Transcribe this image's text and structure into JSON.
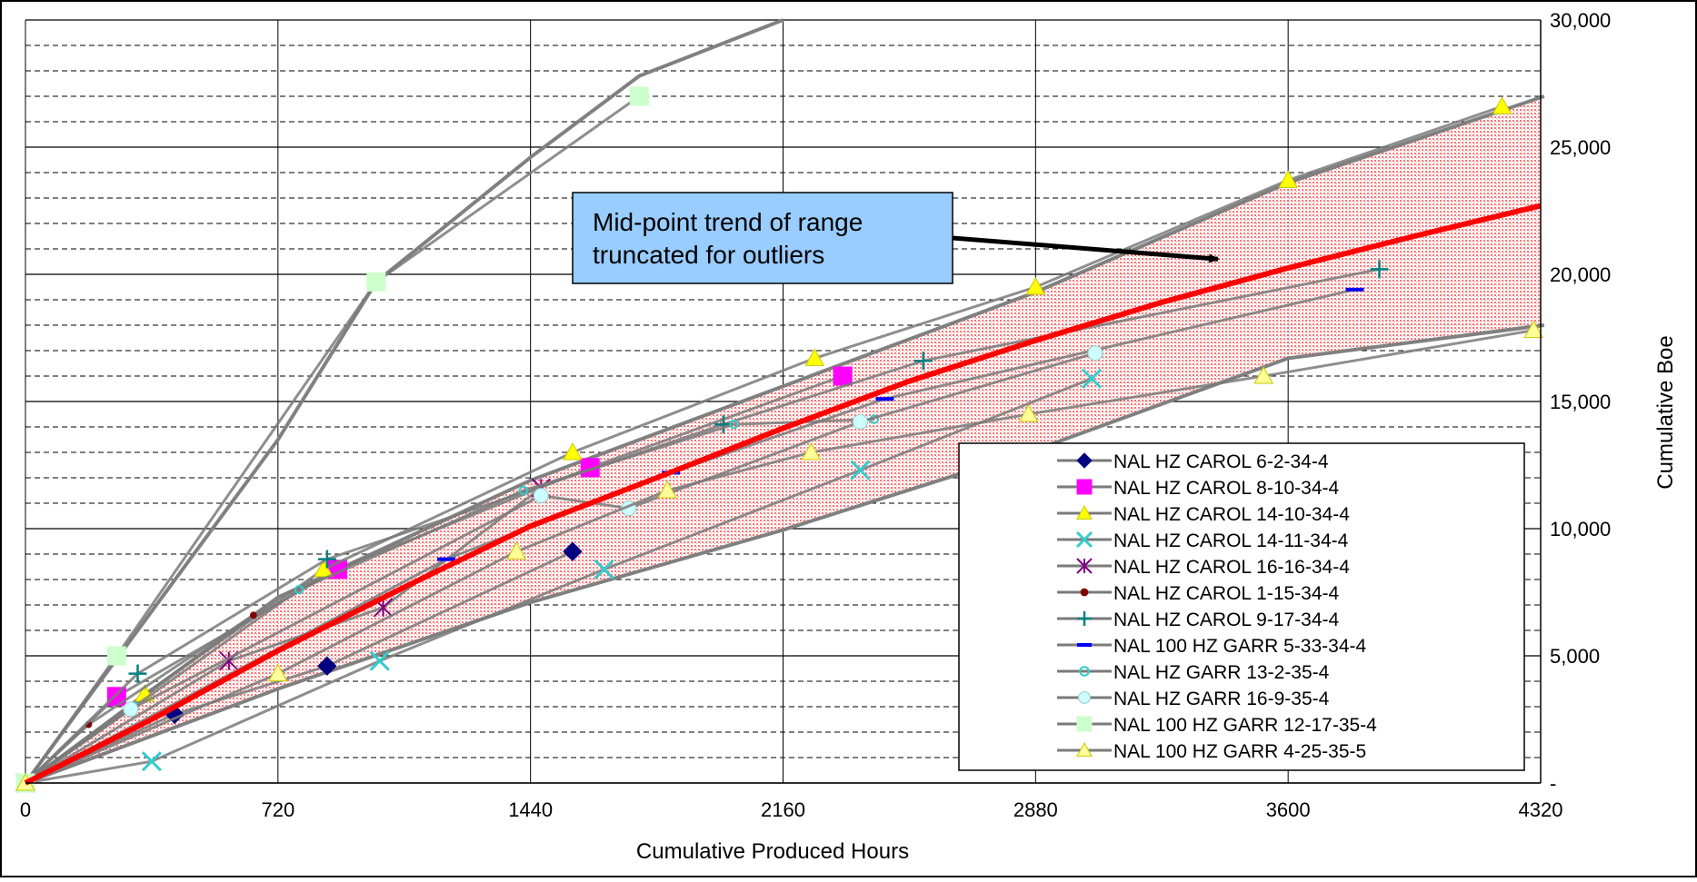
{
  "chart_data": {
    "type": "scatter",
    "xlabel": "Cumulative Produced Hours",
    "ylabel": "Cumulative Boe",
    "xlim": [
      0,
      4320
    ],
    "ylim": [
      0,
      30000
    ],
    "x_ticks": [
      "0",
      "720",
      "1440",
      "2160",
      "2880",
      "3600",
      "4320"
    ],
    "y_ticks": [
      "-",
      "5,000",
      "10,000",
      "15,000",
      "20,000",
      "25,000",
      "30,000"
    ],
    "x_tick_values": [
      0,
      720,
      1440,
      2160,
      2880,
      3600,
      4320
    ],
    "y_tick_values": [
      0,
      5000,
      10000,
      15000,
      20000,
      25000,
      30000
    ],
    "y_axis_position": "right",
    "gridlines": "major solid, minor dashed",
    "legend_position": "bottom-right",
    "annotation": {
      "lines": [
        "Mid-point trend of range",
        "truncated for outliers"
      ],
      "arrow_target": {
        "x": 3400,
        "y": 20600
      },
      "fill_color": "#99ccff"
    },
    "range_band": {
      "fill_color": "#ff9999",
      "upper": [
        [
          0,
          0
        ],
        [
          720,
          7300
        ],
        [
          1440,
          11900
        ],
        [
          2160,
          15600
        ],
        [
          2880,
          19300
        ],
        [
          3600,
          23600
        ],
        [
          4320,
          27000
        ]
      ],
      "lower": [
        [
          0,
          0
        ],
        [
          720,
          3700
        ],
        [
          1440,
          7100
        ],
        [
          2160,
          9950
        ],
        [
          2880,
          13100
        ],
        [
          3600,
          16700
        ],
        [
          4320,
          18000
        ]
      ]
    },
    "trend_line": {
      "color": "#ff0000",
      "points": [
        [
          0,
          0
        ],
        [
          360,
          2500
        ],
        [
          720,
          5200
        ],
        [
          1080,
          7700
        ],
        [
          1440,
          10100
        ],
        [
          1800,
          12000
        ],
        [
          2160,
          13950
        ],
        [
          2520,
          15800
        ],
        [
          2880,
          17400
        ],
        [
          3240,
          18900
        ],
        [
          3600,
          20250
        ],
        [
          3960,
          21500
        ],
        [
          4320,
          22700
        ]
      ]
    },
    "envelope_lines": [
      {
        "name": "upper",
        "points": [
          [
            0,
            0
          ],
          [
            720,
            7300
          ],
          [
            1440,
            11900
          ],
          [
            2160,
            15600
          ],
          [
            2880,
            19300
          ],
          [
            3600,
            23600
          ],
          [
            4330,
            27000
          ]
        ]
      },
      {
        "name": "lower",
        "points": [
          [
            0,
            0
          ],
          [
            720,
            3700
          ],
          [
            1440,
            7100
          ],
          [
            2160,
            9950
          ],
          [
            2880,
            13100
          ],
          [
            3600,
            16700
          ],
          [
            4330,
            18000
          ]
        ]
      },
      {
        "name": "steep",
        "points": [
          [
            0,
            0
          ],
          [
            720,
            13500
          ],
          [
            1000,
            19700
          ],
          [
            1440,
            24600
          ],
          [
            1750,
            27800
          ],
          [
            2160,
            30000
          ]
        ]
      }
    ],
    "series": [
      {
        "name": "NAL HZ CAROL 6-2-34-4",
        "marker": "diamond",
        "color": "#000080",
        "x": [
          0,
          425,
          860,
          1560
        ],
        "y": [
          0,
          2700,
          4600,
          9100
        ]
      },
      {
        "name": "NAL HZ CAROL 8-10-34-4",
        "marker": "square",
        "color": "#ff00ff",
        "x": [
          0,
          260,
          890,
          1610,
          2330
        ],
        "y": [
          0,
          3400,
          8400,
          12400,
          16000
        ]
      },
      {
        "name": "NAL HZ CAROL 14-10-34-4",
        "marker": "triangle",
        "color": "#ffff00",
        "x": [
          0,
          340,
          850,
          1560,
          2250,
          2880,
          3600,
          4210
        ],
        "y": [
          0,
          3500,
          8400,
          13000,
          16700,
          19500,
          23700,
          26600
        ]
      },
      {
        "name": "NAL HZ CAROL 14-11-34-4",
        "marker": "x",
        "color": "#33cccc",
        "x": [
          0,
          360,
          1010,
          1650,
          2380,
          3040
        ],
        "y": [
          0,
          850,
          4800,
          8400,
          12300,
          15900
        ]
      },
      {
        "name": "NAL HZ CAROL 16-16-34-4",
        "marker": "star",
        "color": "#800080",
        "x": [
          0,
          580,
          1020,
          1470
        ],
        "y": [
          0,
          4800,
          6900,
          11600
        ]
      },
      {
        "name": "NAL HZ CAROL 1-15-34-4",
        "marker": "dot",
        "color": "#800000",
        "x": [
          0,
          180,
          650
        ],
        "y": [
          0,
          2300,
          6600
        ]
      },
      {
        "name": "NAL HZ CAROL 9-17-34-4",
        "marker": "plus",
        "color": "#008080",
        "x": [
          0,
          320,
          860,
          1990,
          2560,
          3860
        ],
        "y": [
          0,
          4300,
          8800,
          14100,
          16600,
          20200
        ]
      },
      {
        "name": "NAL 100 HZ GARR 5-33-34-4",
        "marker": "dash",
        "color": "#0000ff",
        "x": [
          0,
          1200,
          1840,
          2450,
          3790
        ],
        "y": [
          0,
          8800,
          12200,
          15100,
          19400
        ]
      },
      {
        "name": "NAL HZ GARR 13-2-35-4",
        "marker": "ring",
        "color": "#33cccc",
        "x": [
          0,
          310,
          780,
          1420,
          2020,
          2420
        ],
        "y": [
          0,
          3000,
          7600,
          11500,
          14100,
          14300
        ]
      },
      {
        "name": "NAL HZ GARR 16-9-35-4",
        "marker": "circle",
        "color": "#ccffff",
        "x": [
          0,
          300,
          1470,
          1720,
          2380,
          3050
        ],
        "y": [
          0,
          2900,
          11300,
          10800,
          14200,
          16900
        ]
      },
      {
        "name": "NAL 100 HZ GARR 12-17-35-4",
        "marker": "square",
        "color": "#ccffcc",
        "x": [
          0,
          260,
          1000,
          1750
        ],
        "y": [
          0,
          5000,
          19700,
          27000
        ]
      },
      {
        "name": "NAL 100 HZ GARR 4-25-35-5",
        "marker": "triangle",
        "color": "#ffff99",
        "x": [
          0,
          720,
          1400,
          1830,
          2240,
          2860,
          3530,
          4300
        ],
        "y": [
          0,
          4300,
          9100,
          11500,
          13000,
          14500,
          16000,
          17800
        ]
      }
    ]
  }
}
